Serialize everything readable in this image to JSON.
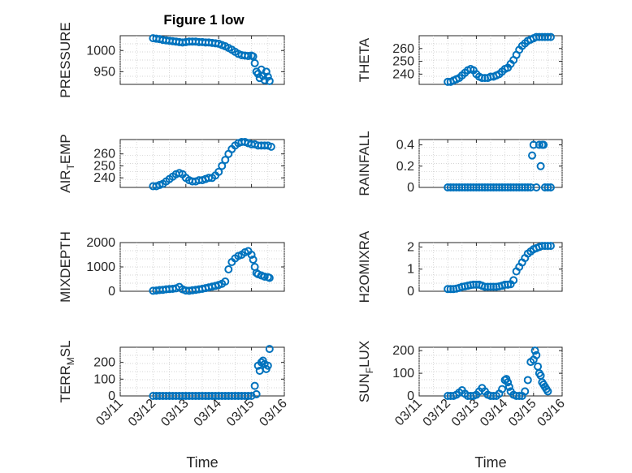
{
  "figure": {
    "title": "Figure 1 low",
    "marker_color": "#0072BD"
  },
  "chart_data": [
    {
      "type": "scatter",
      "ylabel": "PRESSURE",
      "ylim": [
        920,
        1035
      ],
      "yticks": [
        950,
        1000
      ],
      "xlim": [
        0,
        5
      ],
      "xtick_labels": [],
      "x": [
        1.0,
        1.1,
        1.2,
        1.3,
        1.4,
        1.5,
        1.6,
        1.7,
        1.8,
        1.9,
        2.0,
        2.1,
        2.2,
        2.3,
        2.4,
        2.5,
        2.6,
        2.7,
        2.8,
        2.9,
        3.0,
        3.1,
        3.2,
        3.3,
        3.4,
        3.5,
        3.6,
        3.7,
        3.8,
        3.9,
        4.0,
        4.05,
        4.1,
        4.15,
        4.2,
        4.25,
        4.3,
        4.35,
        4.4,
        4.45,
        4.5,
        4.55
      ],
      "y": [
        1029,
        1028,
        1027,
        1025,
        1024,
        1023,
        1022,
        1021,
        1020,
        1019,
        1020,
        1021,
        1021,
        1021,
        1020,
        1020,
        1019,
        1019,
        1018,
        1017,
        1016,
        1013,
        1010,
        1006,
        1002,
        997,
        992,
        989,
        988,
        987,
        988,
        986,
        970,
        950,
        945,
        935,
        955,
        940,
        930,
        950,
        938,
        928
      ]
    },
    {
      "type": "scatter",
      "ylabel": "THETA",
      "ylim": [
        232,
        270
      ],
      "yticks": [
        240,
        250,
        260
      ],
      "xlim": [
        0,
        5
      ],
      "xtick_labels": [],
      "x": [
        1.0,
        1.1,
        1.2,
        1.3,
        1.4,
        1.5,
        1.6,
        1.7,
        1.8,
        1.9,
        2.0,
        2.1,
        2.2,
        2.3,
        2.4,
        2.5,
        2.6,
        2.7,
        2.8,
        2.9,
        3.0,
        3.1,
        3.2,
        3.3,
        3.4,
        3.5,
        3.6,
        3.7,
        3.8,
        3.9,
        4.0,
        4.1,
        4.2,
        4.3,
        4.4,
        4.5,
        4.6
      ],
      "y": [
        234,
        234,
        235,
        236,
        237,
        239,
        241,
        243,
        244,
        243,
        240,
        238,
        237,
        237,
        237,
        238,
        238,
        239,
        240,
        242,
        244,
        245,
        248,
        251,
        255,
        259,
        262,
        264,
        266,
        267,
        268,
        269,
        269,
        269,
        269,
        269,
        269
      ]
    },
    {
      "type": "scatter",
      "ylabel": "AIR_TEMP",
      "ylabel_main": "AIR",
      "ylabel_sub": "T",
      "ylabel_rest": "EMP",
      "ylim": [
        232,
        272
      ],
      "yticks": [
        240,
        250,
        260
      ],
      "xlim": [
        0,
        5
      ],
      "xtick_labels": [],
      "x": [
        1.0,
        1.1,
        1.2,
        1.3,
        1.4,
        1.5,
        1.6,
        1.7,
        1.8,
        1.9,
        2.0,
        2.1,
        2.2,
        2.3,
        2.4,
        2.5,
        2.6,
        2.7,
        2.8,
        2.9,
        3.0,
        3.1,
        3.2,
        3.3,
        3.4,
        3.5,
        3.6,
        3.7,
        3.8,
        3.9,
        4.0,
        4.1,
        4.2,
        4.3,
        4.4,
        4.5,
        4.6
      ],
      "y": [
        233,
        233,
        234,
        235,
        237,
        239,
        241,
        243,
        244,
        243,
        240,
        238,
        237,
        237,
        238,
        238,
        239,
        240,
        240,
        242,
        245,
        250,
        255,
        260,
        264,
        267,
        269,
        270,
        270,
        269,
        268,
        268,
        267,
        267,
        267,
        267,
        266
      ]
    },
    {
      "type": "scatter",
      "ylabel": "RAINFALL",
      "ylim": [
        0,
        0.45
      ],
      "yticks": [
        0,
        0.2,
        0.4
      ],
      "xlim": [
        0,
        5
      ],
      "xtick_labels": [],
      "x": [
        1.0,
        1.1,
        1.2,
        1.3,
        1.4,
        1.5,
        1.6,
        1.7,
        1.8,
        1.9,
        2.0,
        2.1,
        2.2,
        2.3,
        2.4,
        2.5,
        2.6,
        2.7,
        2.8,
        2.9,
        3.0,
        3.1,
        3.2,
        3.3,
        3.4,
        3.5,
        3.6,
        3.7,
        3.8,
        3.9,
        3.95,
        4.0,
        4.1,
        4.2,
        4.25,
        4.3,
        4.35,
        4.4,
        4.5,
        4.6
      ],
      "y": [
        0,
        0,
        0,
        0,
        0,
        0,
        0,
        0,
        0,
        0,
        0,
        0,
        0,
        0,
        0,
        0,
        0,
        0,
        0,
        0,
        0,
        0,
        0,
        0,
        0,
        0,
        0,
        0,
        0,
        0,
        0.3,
        0.4,
        0,
        0.4,
        0.2,
        0.4,
        0.4,
        0,
        0,
        0
      ]
    },
    {
      "type": "scatter",
      "ylabel": "MIXDEPTH",
      "ylim": [
        0,
        2000
      ],
      "yticks": [
        0,
        1000,
        2000
      ],
      "xlim": [
        0,
        5
      ],
      "xtick_labels": [],
      "x": [
        1.0,
        1.1,
        1.2,
        1.3,
        1.4,
        1.5,
        1.6,
        1.7,
        1.8,
        1.9,
        2.0,
        2.1,
        2.2,
        2.3,
        2.4,
        2.5,
        2.6,
        2.7,
        2.8,
        2.9,
        3.0,
        3.1,
        3.2,
        3.3,
        3.4,
        3.5,
        3.6,
        3.7,
        3.8,
        3.9,
        4.0,
        4.05,
        4.1,
        4.15,
        4.2,
        4.3,
        4.4,
        4.5,
        4.55
      ],
      "y": [
        20,
        30,
        50,
        60,
        80,
        90,
        100,
        120,
        180,
        80,
        30,
        20,
        40,
        60,
        80,
        100,
        130,
        160,
        190,
        220,
        260,
        310,
        400,
        900,
        1200,
        1350,
        1450,
        1500,
        1600,
        1650,
        1500,
        1300,
        1000,
        750,
        700,
        650,
        600,
        580,
        550
      ]
    },
    {
      "type": "scatter",
      "ylabel": "H2OMIXRA",
      "ylim": [
        0,
        2.2
      ],
      "yticks": [
        0,
        1,
        2
      ],
      "xlim": [
        0,
        5
      ],
      "xtick_labels": [],
      "x": [
        1.0,
        1.1,
        1.2,
        1.3,
        1.4,
        1.5,
        1.6,
        1.7,
        1.8,
        1.9,
        2.0,
        2.1,
        2.2,
        2.3,
        2.4,
        2.5,
        2.6,
        2.7,
        2.8,
        2.9,
        3.0,
        3.1,
        3.2,
        3.3,
        3.4,
        3.5,
        3.6,
        3.7,
        3.8,
        3.9,
        4.0,
        4.1,
        4.2,
        4.3,
        4.4,
        4.5,
        4.6
      ],
      "y": [
        0.1,
        0.1,
        0.1,
        0.12,
        0.15,
        0.2,
        0.22,
        0.25,
        0.28,
        0.3,
        0.3,
        0.3,
        0.25,
        0.2,
        0.2,
        0.2,
        0.2,
        0.2,
        0.22,
        0.25,
        0.3,
        0.3,
        0.32,
        0.5,
        0.9,
        1.1,
        1.3,
        1.5,
        1.7,
        1.8,
        1.9,
        1.95,
        2.0,
        2.05,
        2.05,
        2.05,
        2.05
      ]
    },
    {
      "type": "scatter",
      "ylabel": "TERR_MSL",
      "ylabel_main": "TERR",
      "ylabel_sub": "M",
      "ylabel_rest": "SL",
      "ylim": [
        0,
        290
      ],
      "yticks": [
        0,
        100,
        200
      ],
      "xlim": [
        0,
        5
      ],
      "xtick_labels": [
        "03/11",
        "03/12",
        "03/13",
        "03/14",
        "03/15",
        "03/16"
      ],
      "xlabel": "Time",
      "x": [
        1.0,
        1.1,
        1.2,
        1.3,
        1.4,
        1.5,
        1.6,
        1.7,
        1.8,
        1.9,
        2.0,
        2.1,
        2.2,
        2.3,
        2.4,
        2.5,
        2.6,
        2.7,
        2.8,
        2.9,
        3.0,
        3.1,
        3.2,
        3.3,
        3.4,
        3.5,
        3.6,
        3.7,
        3.8,
        3.9,
        4.0,
        4.1,
        4.15,
        4.2,
        4.25,
        4.3,
        4.35,
        4.4,
        4.45,
        4.5,
        4.55
      ],
      "y": [
        0,
        0,
        0,
        0,
        0,
        0,
        0,
        0,
        0,
        0,
        0,
        0,
        0,
        0,
        0,
        0,
        0,
        0,
        0,
        0,
        0,
        0,
        0,
        0,
        0,
        0,
        0,
        0,
        0,
        0,
        0,
        60,
        10,
        180,
        150,
        200,
        210,
        190,
        160,
        180,
        280
      ]
    },
    {
      "type": "scatter",
      "ylabel": "SUN_FLUX",
      "ylabel_main": "SUN",
      "ylabel_sub": "F",
      "ylabel_rest": "LUX",
      "ylim": [
        0,
        215
      ],
      "yticks": [
        0,
        100,
        200
      ],
      "xlim": [
        0,
        5
      ],
      "xtick_labels": [
        "03/11",
        "03/12",
        "03/13",
        "03/14",
        "03/15",
        "03/16"
      ],
      "xlabel": "Time",
      "x": [
        1.0,
        1.1,
        1.2,
        1.3,
        1.4,
        1.5,
        1.6,
        1.7,
        1.8,
        1.9,
        2.0,
        2.1,
        2.2,
        2.3,
        2.4,
        2.5,
        2.6,
        2.7,
        2.8,
        2.9,
        3.0,
        3.05,
        3.1,
        3.15,
        3.2,
        3.3,
        3.4,
        3.5,
        3.6,
        3.7,
        3.8,
        3.9,
        4.0,
        4.05,
        4.1,
        4.15,
        4.2,
        4.25,
        4.3,
        4.35,
        4.4,
        4.45,
        4.5
      ],
      "y": [
        0,
        0,
        0,
        5,
        15,
        25,
        10,
        0,
        0,
        0,
        5,
        20,
        35,
        20,
        5,
        0,
        0,
        0,
        10,
        30,
        70,
        75,
        60,
        40,
        20,
        5,
        0,
        0,
        0,
        20,
        70,
        150,
        160,
        200,
        180,
        130,
        100,
        90,
        60,
        50,
        40,
        30,
        20
      ]
    }
  ]
}
